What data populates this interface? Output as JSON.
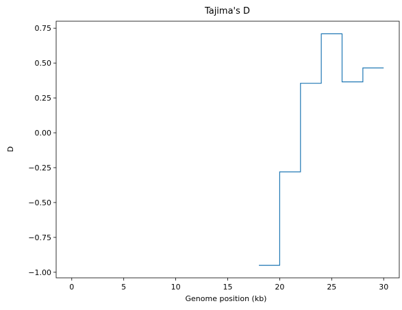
{
  "chart_data": {
    "type": "line",
    "step": "post",
    "title": "Tajima's D",
    "xlabel": "Genome position (kb)",
    "ylabel": "D",
    "xlim": [
      -1.5,
      31.5
    ],
    "ylim": [
      -1.04,
      0.8
    ],
    "xticks": [
      0,
      5,
      10,
      15,
      20,
      25,
      30
    ],
    "xtick_labels": [
      "0",
      "5",
      "10",
      "15",
      "20",
      "25",
      "30"
    ],
    "yticks": [
      -1.0,
      -0.75,
      -0.5,
      -0.25,
      0.0,
      0.25,
      0.5,
      0.75
    ],
    "ytick_labels": [
      "−1.00",
      "−0.75",
      "−0.50",
      "−0.25",
      "0.00",
      "0.25",
      "0.50",
      "0.75"
    ],
    "grid": false,
    "series": [
      {
        "color": "#1f77b4",
        "x": [
          18,
          20,
          22,
          24,
          26,
          28,
          30
        ],
        "y": [
          -0.95,
          -0.28,
          0.355,
          0.71,
          0.365,
          0.465,
          0.465
        ]
      }
    ]
  }
}
